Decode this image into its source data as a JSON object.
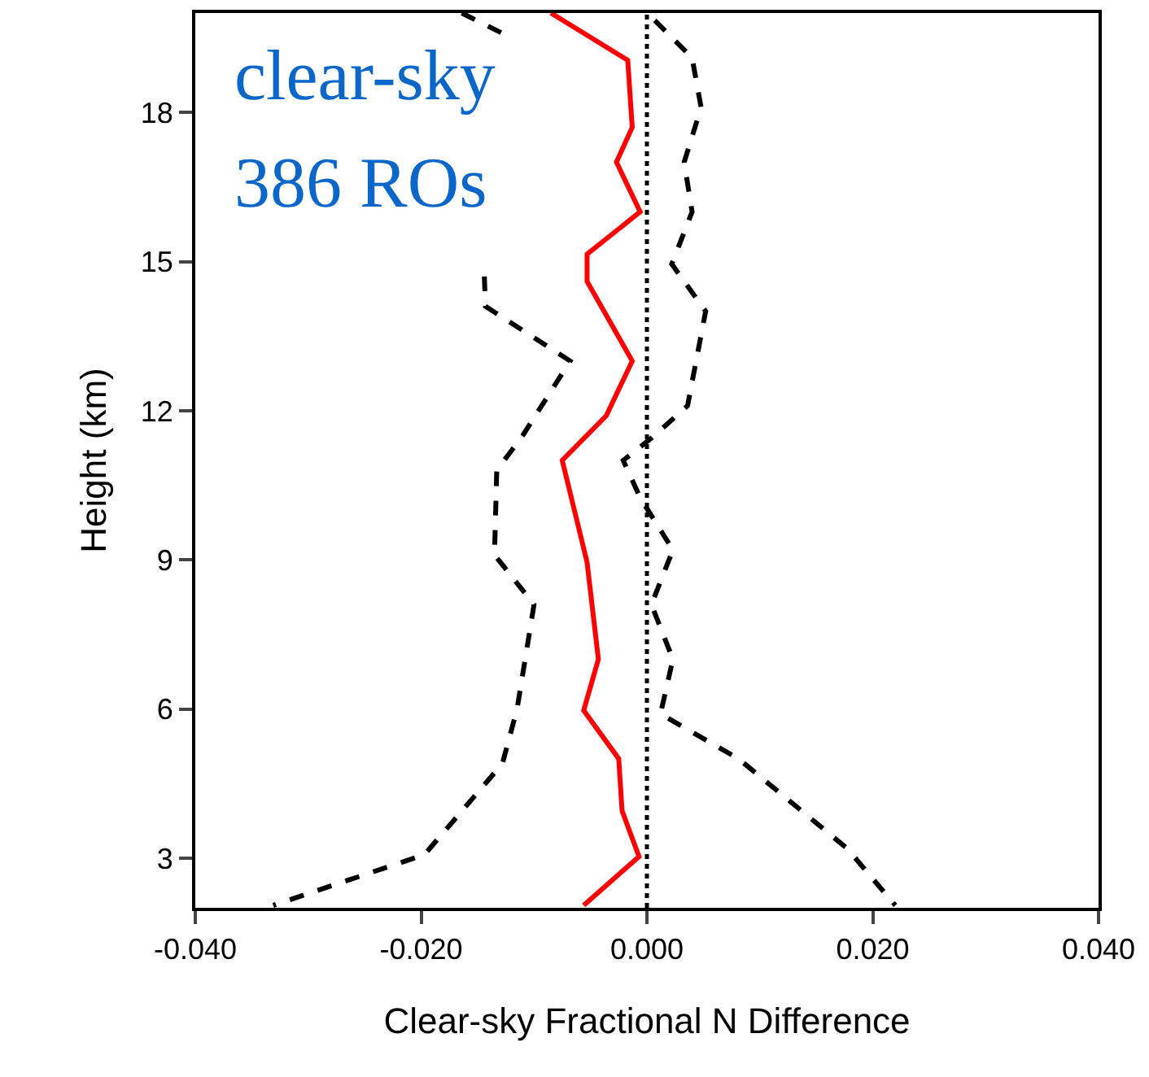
{
  "chart_data": {
    "type": "line",
    "xlabel": "Clear-sky Fractional N Difference",
    "ylabel": "Height (km)",
    "annotations": [
      "clear-sky",
      "386 ROs"
    ],
    "series": [
      {
        "color": "#ff0000",
        "line_style": "solid",
        "x": [
          -0.0085,
          -0.0017,
          -0.0013,
          -0.0027,
          -0.0006,
          -0.0053,
          -0.0053,
          -0.0013,
          -0.0036,
          -0.0075,
          -0.0053,
          -0.0043,
          -0.0056,
          -0.0025,
          -0.0022,
          -0.0007,
          -0.0056
        ],
        "values": [
          20,
          19.05,
          17.7,
          17,
          16,
          15.15,
          14.6,
          13,
          11.9,
          11,
          8.95,
          7,
          5.97,
          5,
          3.95,
          3.03,
          2.05
        ]
      },
      {
        "color": "#000000",
        "line_style": "dashed",
        "x": [
          -0.0164,
          -0.012,
          null,
          -0.0144,
          -0.0143,
          -0.0068,
          -0.011,
          -0.0133,
          -0.0135,
          -0.01,
          -0.0115,
          -0.0128,
          -0.0197,
          -0.0331
        ],
        "values": [
          20,
          19.5,
          null,
          14.7,
          14.1,
          13,
          11.5,
          10.8,
          9.1,
          8.1,
          6,
          4.9,
          3.07,
          2.05
        ]
      },
      {
        "color": "#000000",
        "line_style": "dashed",
        "x": [
          0.0007,
          0.004,
          0.0048,
          0.0033,
          0.004,
          0.0022,
          0.0052,
          0.0036,
          0.0004,
          -0.0021,
          -0.0006,
          0.0023,
          0.0004,
          0.0023,
          0.0012,
          0.0081,
          0.0177,
          0.022
        ],
        "values": [
          19.85,
          19.1,
          18.1,
          17,
          16,
          14.95,
          14,
          12.1,
          11.45,
          11,
          10.25,
          9.2,
          8.1,
          7,
          5.9,
          5,
          3.2,
          2.05
        ]
      }
    ],
    "ref_lines": [
      {
        "axis": "x",
        "value": 0,
        "color": "#000000",
        "line_style": "dotted"
      }
    ],
    "xlim": [
      -0.04,
      0.04
    ],
    "xticks": [
      {
        "value": -0.04,
        "label": "-0.040"
      },
      {
        "value": -0.02,
        "label": "-0.020"
      },
      {
        "value": 0,
        "label": "0.000"
      },
      {
        "value": 0.02,
        "label": "0.020"
      },
      {
        "value": 0.04,
        "label": "0.040"
      }
    ],
    "ylim": [
      2,
      20
    ],
    "yticks": [
      3,
      6,
      9,
      12,
      15,
      18
    ],
    "grid": false,
    "marker": "none"
  }
}
